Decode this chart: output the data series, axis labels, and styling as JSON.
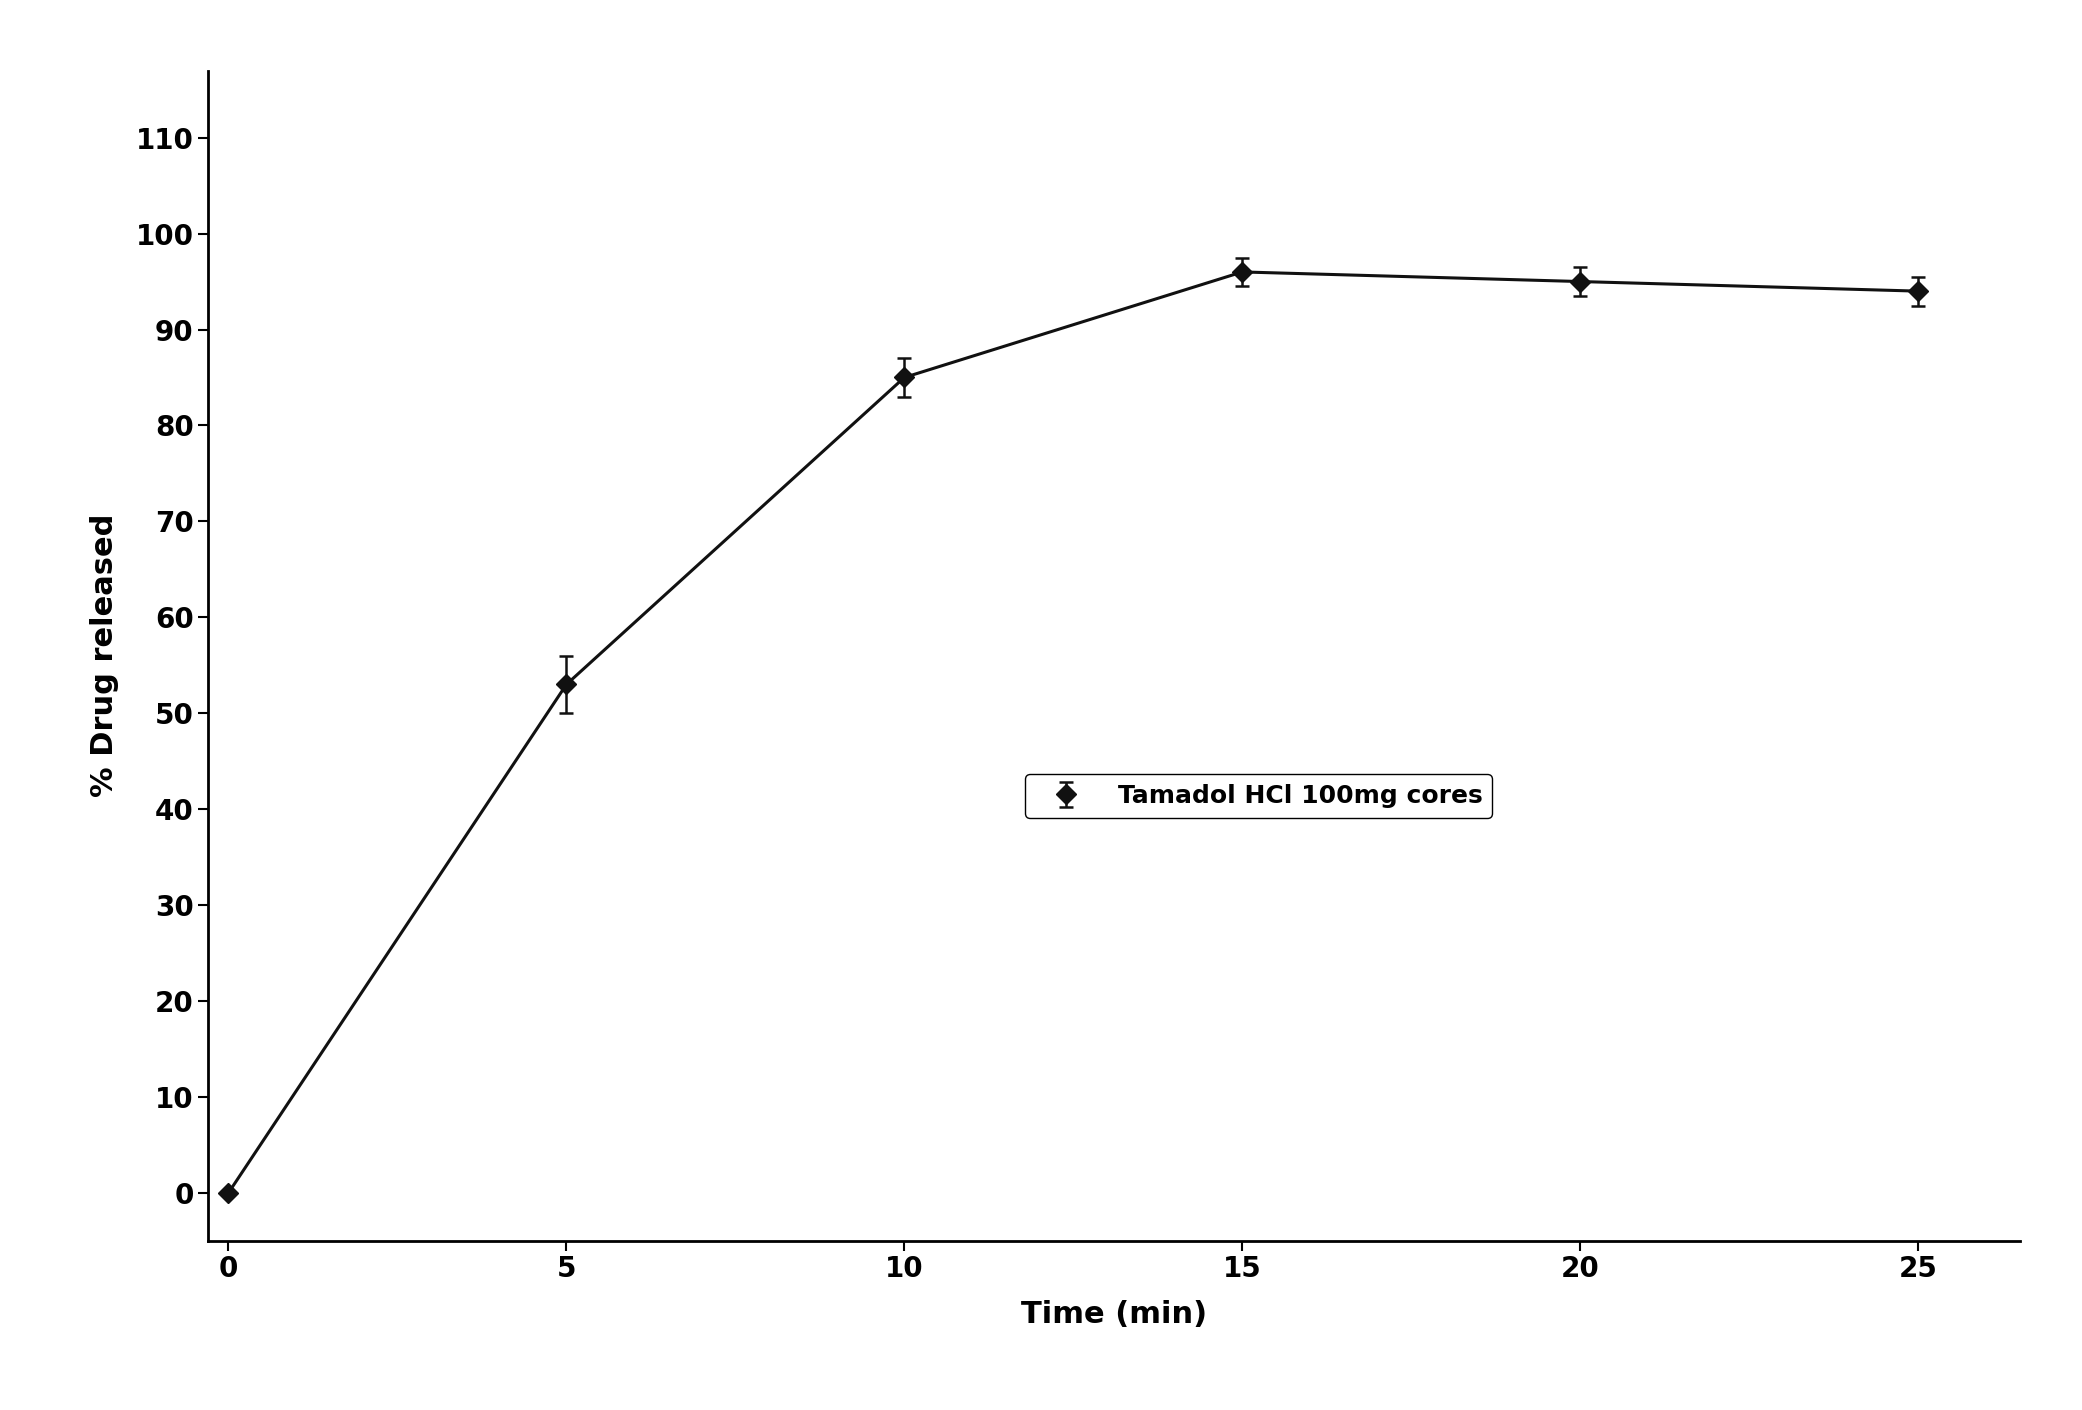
{
  "x": [
    0,
    5,
    10,
    15,
    20,
    25
  ],
  "y": [
    0,
    53,
    85,
    96,
    95,
    94
  ],
  "yerr": [
    0,
    3.0,
    2.0,
    1.5,
    1.5,
    1.5
  ],
  "xlabel": "Time (min)",
  "ylabel": "% Drug released",
  "legend_label": "Tamadol HCl 100mg cores",
  "xlim": [
    -0.3,
    26.5
  ],
  "ylim": [
    -5,
    117
  ],
  "yticks": [
    0,
    10,
    20,
    30,
    40,
    50,
    60,
    70,
    80,
    90,
    100,
    110
  ],
  "xticks": [
    0,
    5,
    10,
    15,
    20,
    25
  ],
  "line_color": "#111111",
  "marker": "D",
  "marker_size": 10,
  "marker_color": "#111111",
  "line_width": 2.2,
  "background_color": "#ffffff",
  "xlabel_fontsize": 22,
  "ylabel_fontsize": 22,
  "tick_fontsize": 20,
  "legend_fontsize": 18
}
